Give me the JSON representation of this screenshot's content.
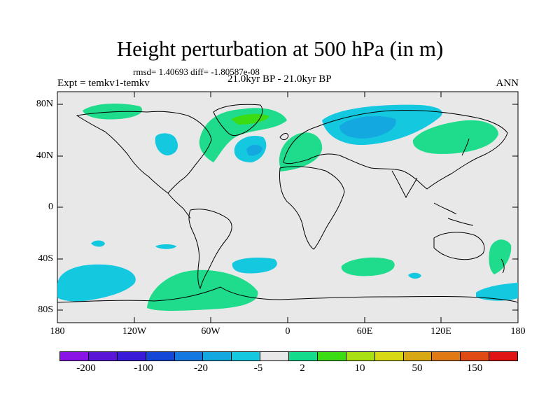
{
  "title": "Height perturbation at 500 hPa (in m)",
  "stats": "rmsd= 1.40693 diff= -1.80587e-08",
  "experiment": "Expt = temkv1-temkv",
  "period": "21.0kyr BP - 21.0kyr BP",
  "season": "ANN",
  "axes": {
    "y_ticks": [
      "80N",
      "40N",
      "0",
      "40S",
      "80S"
    ],
    "x_ticks": [
      "180",
      "120W",
      "60W",
      "0",
      "60E",
      "120E",
      "180"
    ]
  },
  "colors": {
    "background": "#ffffff",
    "ocean_land_fill": "#e8e8e8",
    "coastline": "#000000"
  },
  "colorbar": {
    "swatches": [
      "#8a14e6",
      "#5a14d8",
      "#3a1cd8",
      "#1446d8",
      "#1478e0",
      "#14a8e0",
      "#14c8e0",
      "#e8e8e8",
      "#14dc8c",
      "#3cdc14",
      "#a8e014",
      "#d8d814",
      "#d8a814",
      "#e07814",
      "#e04a14",
      "#e01414"
    ],
    "labels": [
      "-200",
      "-100",
      "-20",
      "-5",
      "2",
      "10",
      "50",
      "150"
    ]
  }
}
